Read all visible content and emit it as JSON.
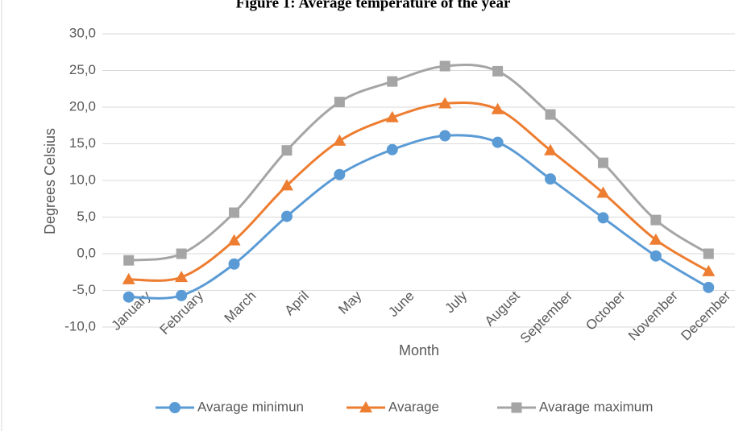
{
  "chart_data": {
    "type": "line",
    "title": "Figure 1: Average temperature of the year",
    "xlabel": "Month",
    "ylabel": "Degrees Celsius",
    "categories": [
      "January",
      "February",
      "March",
      "April",
      "May",
      "June",
      "July",
      "August",
      "September",
      "October",
      "November",
      "December"
    ],
    "series": [
      {
        "name": "Avarage minimun",
        "color": "#5b9bd5",
        "marker": "circle",
        "values": [
          -5.9,
          -5.7,
          -1.4,
          5.1,
          10.8,
          14.2,
          16.1,
          15.2,
          10.2,
          4.9,
          -0.3,
          -4.6
        ]
      },
      {
        "name": "Avarage",
        "color": "#ed7d31",
        "marker": "triangle",
        "values": [
          -3.5,
          -3.2,
          1.8,
          9.3,
          15.4,
          18.6,
          20.5,
          19.7,
          14.1,
          8.3,
          1.9,
          -2.4
        ]
      },
      {
        "name": "Avarage maximum",
        "color": "#a5a5a5",
        "marker": "square",
        "values": [
          -0.9,
          0.0,
          5.6,
          14.1,
          20.7,
          23.5,
          25.6,
          24.9,
          19.0,
          12.4,
          4.6,
          0.0
        ]
      }
    ],
    "ylim": [
      -10,
      30
    ],
    "yticks": [
      {
        "value": -10,
        "label": "-10,0"
      },
      {
        "value": -5,
        "label": "-5,0"
      },
      {
        "value": 0,
        "label": "0,0"
      },
      {
        "value": 5,
        "label": "5,0"
      },
      {
        "value": 10,
        "label": "10,0"
      },
      {
        "value": 15,
        "label": "15,0"
      },
      {
        "value": 20,
        "label": "20,0"
      },
      {
        "value": 25,
        "label": "25,0"
      },
      {
        "value": 30,
        "label": "30,0"
      }
    ],
    "grid": true,
    "smooth": true,
    "legend": "bottom"
  }
}
